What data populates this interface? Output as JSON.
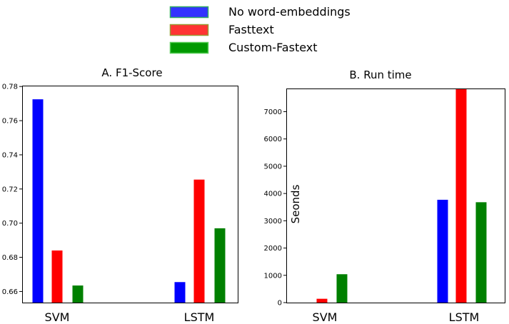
{
  "legend": [
    {
      "name": "No word-embeddings",
      "color": "#0000ff",
      "swatch_fill": "#3333ff",
      "swatch_edge": "#33aa66"
    },
    {
      "name": "Fasttext",
      "color": "#ff0000",
      "swatch_fill": "#ff3333",
      "swatch_edge": "#999933"
    },
    {
      "name": "Custom-Fastext",
      "color": "#008000",
      "swatch_fill": "#009900",
      "swatch_edge": "#55cc55"
    }
  ],
  "chart_data": [
    {
      "type": "bar",
      "title": "A. F1-Score",
      "xlabel": "",
      "ylabel": "",
      "categories": [
        "SVM",
        "LSTM"
      ],
      "series": [
        {
          "name": "No word-embeddings",
          "values": [
            0.7725,
            0.6655
          ]
        },
        {
          "name": "Fasttext",
          "values": [
            0.684,
            0.7255
          ]
        },
        {
          "name": "Custom-Fastext",
          "values": [
            0.6635,
            0.697
          ]
        }
      ],
      "ylim": [
        0.6535,
        0.7805
      ],
      "yticks": [
        0.66,
        0.68,
        0.7,
        0.72,
        0.74,
        0.76,
        0.78
      ],
      "ytick_labels": [
        "0.66",
        "0.68",
        "0.70",
        "0.72",
        "0.74",
        "0.76",
        "0.78"
      ],
      "grid": false,
      "legend": "top-center"
    },
    {
      "type": "bar",
      "title": "B. Run time",
      "xlabel": "",
      "ylabel": "Seonds",
      "categories": [
        "SVM",
        "LSTM"
      ],
      "series": [
        {
          "name": "No word-embeddings",
          "values": [
            0,
            3770
          ]
        },
        {
          "name": "Fasttext",
          "values": [
            140,
            7850
          ]
        },
        {
          "name": "Custom-Fastext",
          "values": [
            1040,
            3680
          ]
        }
      ],
      "ylim": [
        0,
        7850
      ],
      "yticks": [
        0,
        1000,
        2000,
        3000,
        4000,
        5000,
        6000,
        7000
      ],
      "ytick_labels": [
        "0",
        "1000",
        "2000",
        "3000",
        "4000",
        "5000",
        "6000",
        "7000"
      ],
      "grid": false,
      "legend": "top-center"
    }
  ]
}
